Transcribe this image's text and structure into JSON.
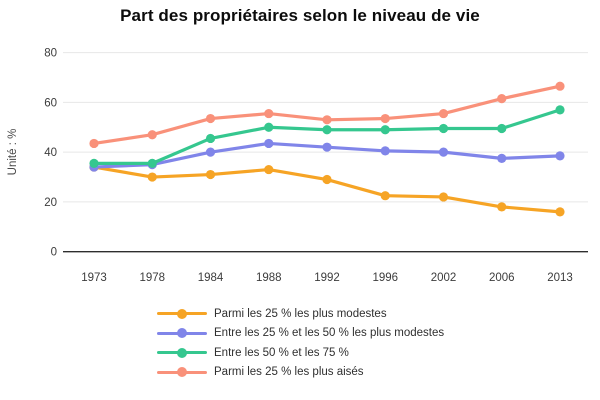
{
  "title": "Part des propriétaires selon le niveau de vie",
  "colors": {
    "grid": "#e7e7e7",
    "axis": "#2e2e2e",
    "tick_text": "#3c3c3c",
    "ylabel_text": "#4a4a4a",
    "title_text": "#0c0c0c"
  },
  "chart_data": {
    "type": "line",
    "title": "Part des propriétaires selon le niveau de vie",
    "categories": [
      "1973",
      "1978",
      "1984",
      "1988",
      "1992",
      "1996",
      "2002",
      "2006",
      "2013"
    ],
    "series": [
      {
        "name": "Parmi les 25 % les plus modestes",
        "color": "#f6a425",
        "values": [
          34,
          30,
          31,
          33,
          29,
          22.5,
          22,
          18,
          16
        ]
      },
      {
        "name": "Entre les 25 % et les 50 % les plus modestes",
        "color": "#8085e9",
        "values": [
          34,
          35,
          40,
          43.5,
          42,
          40.5,
          40,
          37.5,
          38.5
        ]
      },
      {
        "name": "Entre les 50 % et les 75 %",
        "color": "#35c78f",
        "values": [
          35.5,
          35.5,
          45.5,
          50,
          49,
          49,
          49.5,
          49.5,
          57
        ]
      },
      {
        "name": "Parmi les 25 % les plus aisés",
        "color": "#f9917a",
        "values": [
          43.5,
          47,
          53.5,
          55.5,
          53,
          53.5,
          55.5,
          61.5,
          66.5
        ]
      }
    ],
    "xlabel": "",
    "ylabel": "Unité : %",
    "ylim": [
      0,
      80
    ],
    "yticks": [
      0,
      20,
      40,
      60,
      80
    ],
    "grid": true,
    "legend_position": "bottom-left"
  }
}
